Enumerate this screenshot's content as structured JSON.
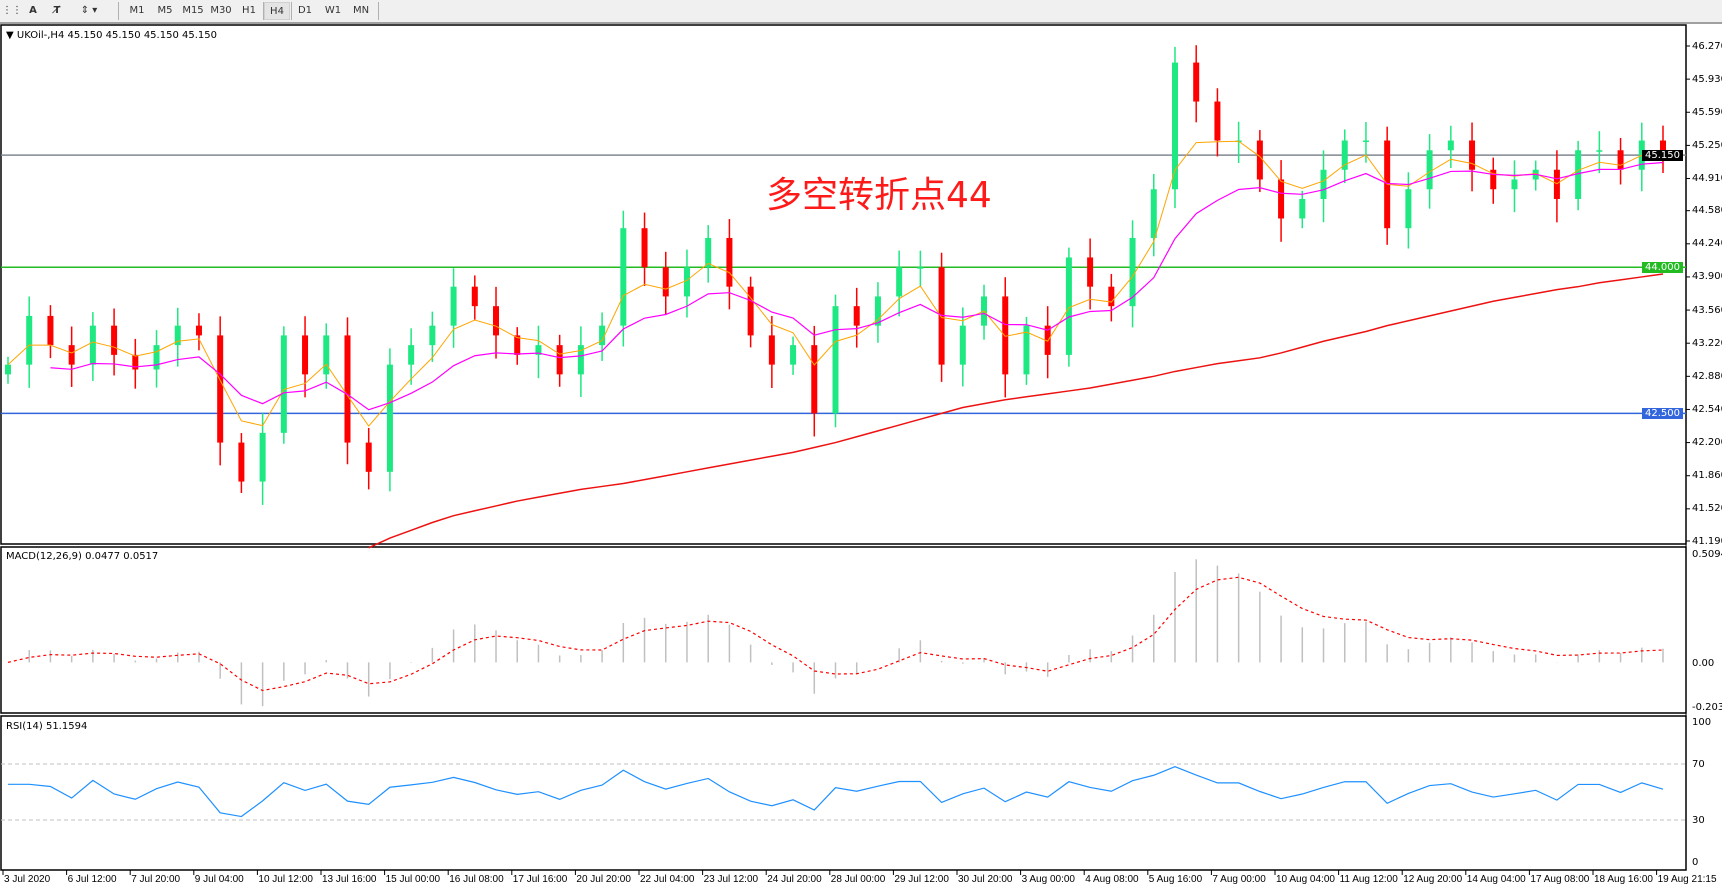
{
  "toolbar": {
    "icons": [
      "grid-lines-icon",
      "text-icon",
      "text-box-icon",
      "arrows-icon"
    ],
    "timeframes": [
      "M1",
      "M5",
      "M15",
      "M30",
      "H1",
      "H4",
      "D1",
      "W1",
      "MN"
    ],
    "selected": "H4"
  },
  "main": {
    "header": "UKOil-,H4  45.150 45.150 45.150 45.150",
    "annotation": "多空转折点44",
    "price_ticks": [
      "46.270",
      "45.930",
      "45.590",
      "45.250",
      "44.910",
      "44.580",
      "44.240",
      "43.900",
      "43.560",
      "43.220",
      "42.880",
      "42.540",
      "42.200",
      "41.860",
      "41.520",
      "41.190"
    ],
    "current_price_label": "45.150",
    "levels": [
      {
        "value": 45.15,
        "label": "45.150",
        "color": "#808890"
      },
      {
        "value": 44.0,
        "label": "44.000",
        "color": "#22bb22"
      },
      {
        "value": 42.5,
        "label": "42.500",
        "color": "#3366dd"
      }
    ]
  },
  "macd": {
    "header": "MACD(12,26,9) 0.0477 0.0517",
    "ticks": [
      "0.5094",
      "0.00",
      "-0.2032"
    ]
  },
  "rsi": {
    "header": "RSI(14) 51.1594",
    "ticks": [
      "100",
      "70",
      "30",
      "0"
    ]
  },
  "time_labels": [
    "3 Jul 2020",
    "6 Jul 12:00",
    "7 Jul 20:00",
    "9 Jul 04:00",
    "10 Jul 12:00",
    "13 Jul 16:00",
    "15 Jul 00:00",
    "16 Jul 08:00",
    "17 Jul 16:00",
    "20 Jul 20:00",
    "22 Jul 04:00",
    "23 Jul 12:00",
    "24 Jul 20:00",
    "28 Jul 00:00",
    "29 Jul 12:00",
    "30 Jul 20:00",
    "3 Aug 00:00",
    "4 Aug 08:00",
    "5 Aug 16:00",
    "7 Aug 00:00",
    "10 Aug 04:00",
    "11 Aug 12:00",
    "12 Aug 20:00",
    "14 Aug 04:00",
    "17 Aug 08:00",
    "18 Aug 16:00",
    "19 Aug 21:15"
  ],
  "colors": {
    "up": "#1ee882",
    "down": "#ff0000",
    "ma_fast": "#ffa500",
    "ma_mid": "#ff00ff",
    "ma_slow": "#ee1111",
    "macd_hist": "#c0c0c0",
    "macd_signal": "#ff0000",
    "rsi": "#1e90ff"
  },
  "chart_data": {
    "type": "candlestick",
    "symbol": "UKOil-",
    "timeframe": "H4",
    "ylim": [
      41.19,
      46.27
    ],
    "close": [
      43.0,
      43.5,
      43.2,
      43.0,
      43.4,
      43.1,
      42.95,
      43.2,
      43.4,
      43.3,
      42.2,
      41.8,
      42.3,
      43.3,
      42.9,
      43.3,
      42.2,
      41.9,
      43.0,
      43.2,
      43.4,
      43.8,
      43.6,
      43.3,
      43.1,
      43.2,
      42.9,
      43.2,
      43.4,
      44.4,
      44.0,
      43.7,
      44.0,
      44.3,
      43.8,
      43.3,
      43.0,
      43.2,
      42.5,
      43.6,
      43.4,
      43.7,
      44.0,
      44.0,
      43.0,
      43.4,
      43.7,
      42.9,
      43.4,
      43.1,
      44.1,
      43.8,
      43.6,
      44.3,
      44.8,
      46.1,
      45.7,
      45.3,
      45.3,
      44.9,
      44.5,
      44.7,
      45.0,
      45.3,
      45.3,
      44.4,
      44.8,
      45.2,
      45.3,
      45.0,
      44.8,
      44.9,
      45.0,
      44.7,
      45.2,
      45.2,
      45.0,
      45.3,
      45.15
    ],
    "ma_slow": [
      null,
      null,
      null,
      null,
      null,
      null,
      null,
      null,
      null,
      null,
      null,
      null,
      null,
      null,
      null,
      null,
      null,
      41.12,
      41.22,
      41.3,
      41.38,
      41.45,
      41.5,
      41.55,
      41.6,
      41.64,
      41.68,
      41.72,
      41.75,
      41.78,
      41.82,
      41.86,
      41.9,
      41.94,
      41.98,
      42.02,
      42.06,
      42.1,
      42.15,
      42.2,
      42.26,
      42.32,
      42.38,
      42.44,
      42.5,
      42.56,
      42.6,
      42.64,
      42.67,
      42.7,
      42.73,
      42.76,
      42.8,
      42.84,
      42.88,
      42.93,
      42.97,
      43.01,
      43.04,
      43.07,
      43.12,
      43.18,
      43.24,
      43.29,
      43.34,
      43.4,
      43.45,
      43.5,
      43.55,
      43.6,
      43.65,
      43.69,
      43.73,
      43.77,
      43.8,
      43.84,
      43.87,
      43.9,
      43.93
    ],
    "macd_ylim": [
      -0.2032,
      0.5094
    ],
    "rsi_levels": [
      30,
      70
    ]
  }
}
